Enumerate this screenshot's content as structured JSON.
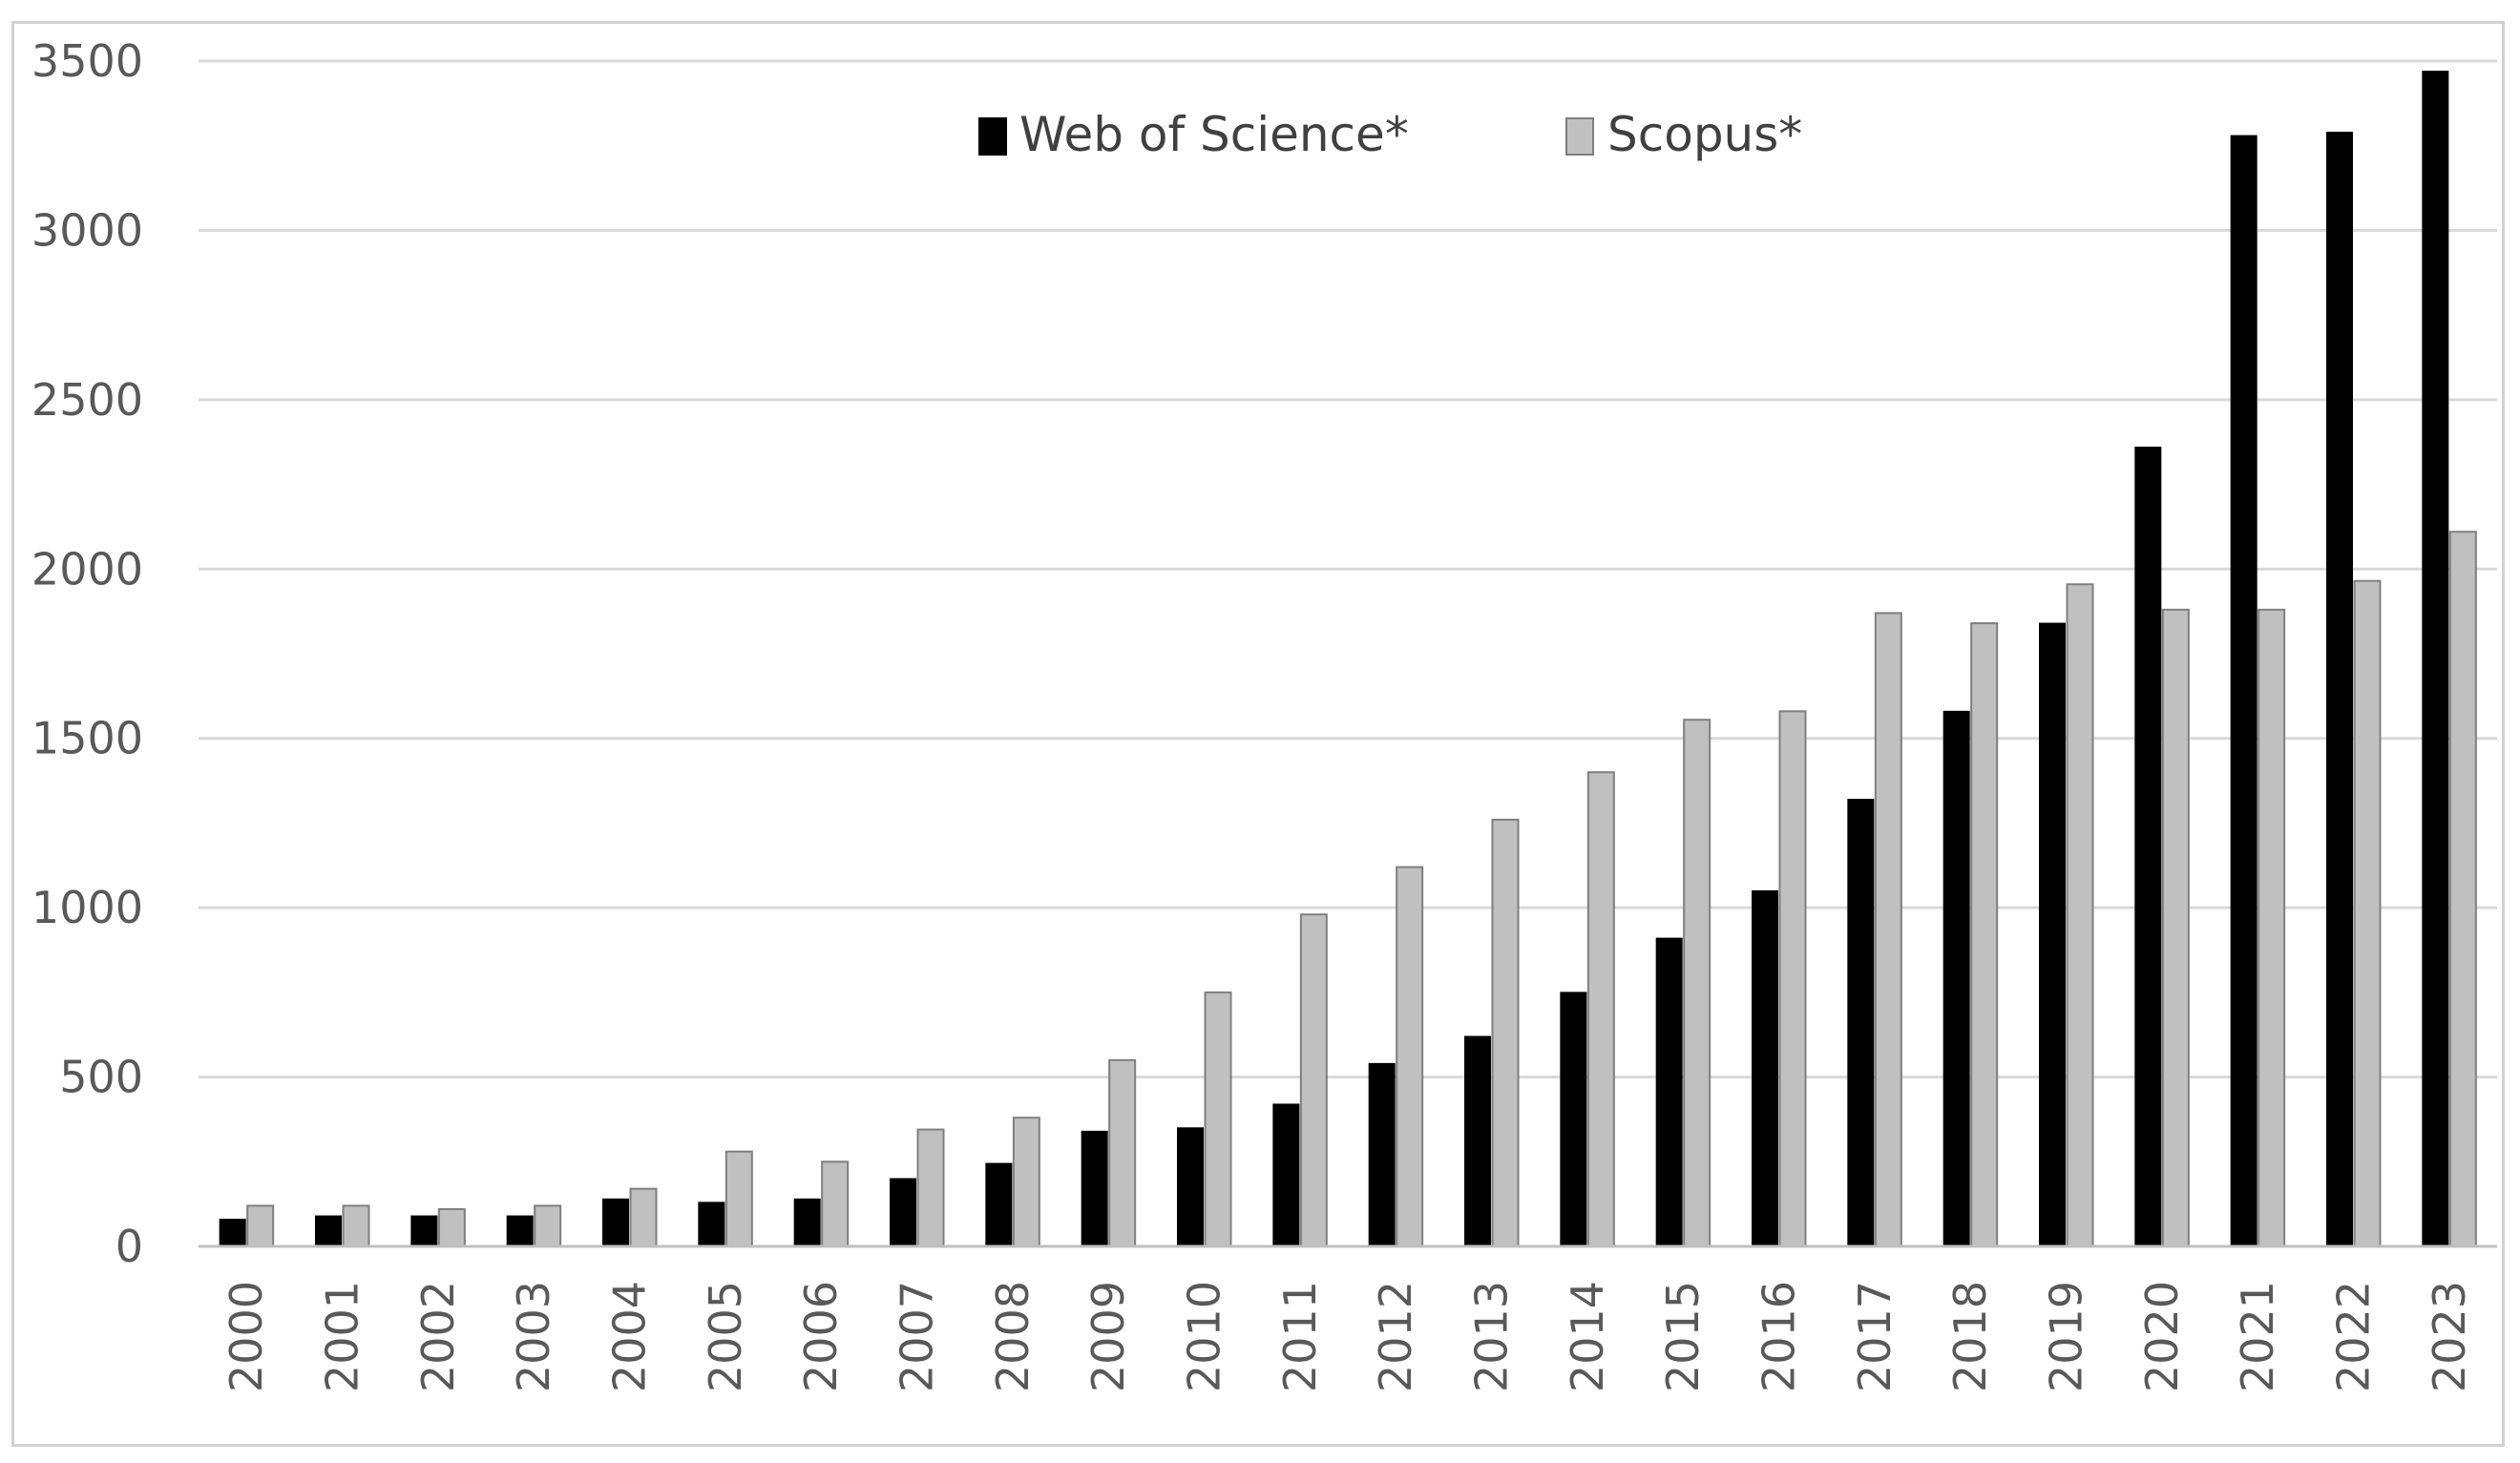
{
  "chart_data": {
    "type": "bar",
    "title": "",
    "xlabel": "",
    "ylabel": "",
    "ylim": [
      0,
      3500
    ],
    "yticks": [
      0,
      500,
      1000,
      1500,
      2000,
      2500,
      3000,
      3500
    ],
    "grid": true,
    "legend_position": "top-center",
    "categories": [
      "2000",
      "2001",
      "2002",
      "2003",
      "2004",
      "2005",
      "2006",
      "2007",
      "2008",
      "2009",
      "2010",
      "2011",
      "2012",
      "2013",
      "2014",
      "2015",
      "2016",
      "2017",
      "2018",
      "2019",
      "2020",
      "2021",
      "2022",
      "2023"
    ],
    "series": [
      {
        "name": "Web of Science*",
        "color": "#000000",
        "values": [
          80,
          90,
          90,
          90,
          140,
          130,
          140,
          200,
          245,
          340,
          350,
          420,
          540,
          620,
          750,
          910,
          1050,
          1320,
          1580,
          1840,
          2360,
          3280,
          3290,
          3470
        ]
      },
      {
        "name": "Scopus*",
        "color": "#c0c0c0",
        "values": [
          120,
          120,
          110,
          120,
          170,
          280,
          250,
          345,
          380,
          550,
          750,
          980,
          1120,
          1260,
          1400,
          1555,
          1580,
          1870,
          1840,
          1955,
          1880,
          1880,
          1965,
          2110
        ]
      }
    ]
  }
}
